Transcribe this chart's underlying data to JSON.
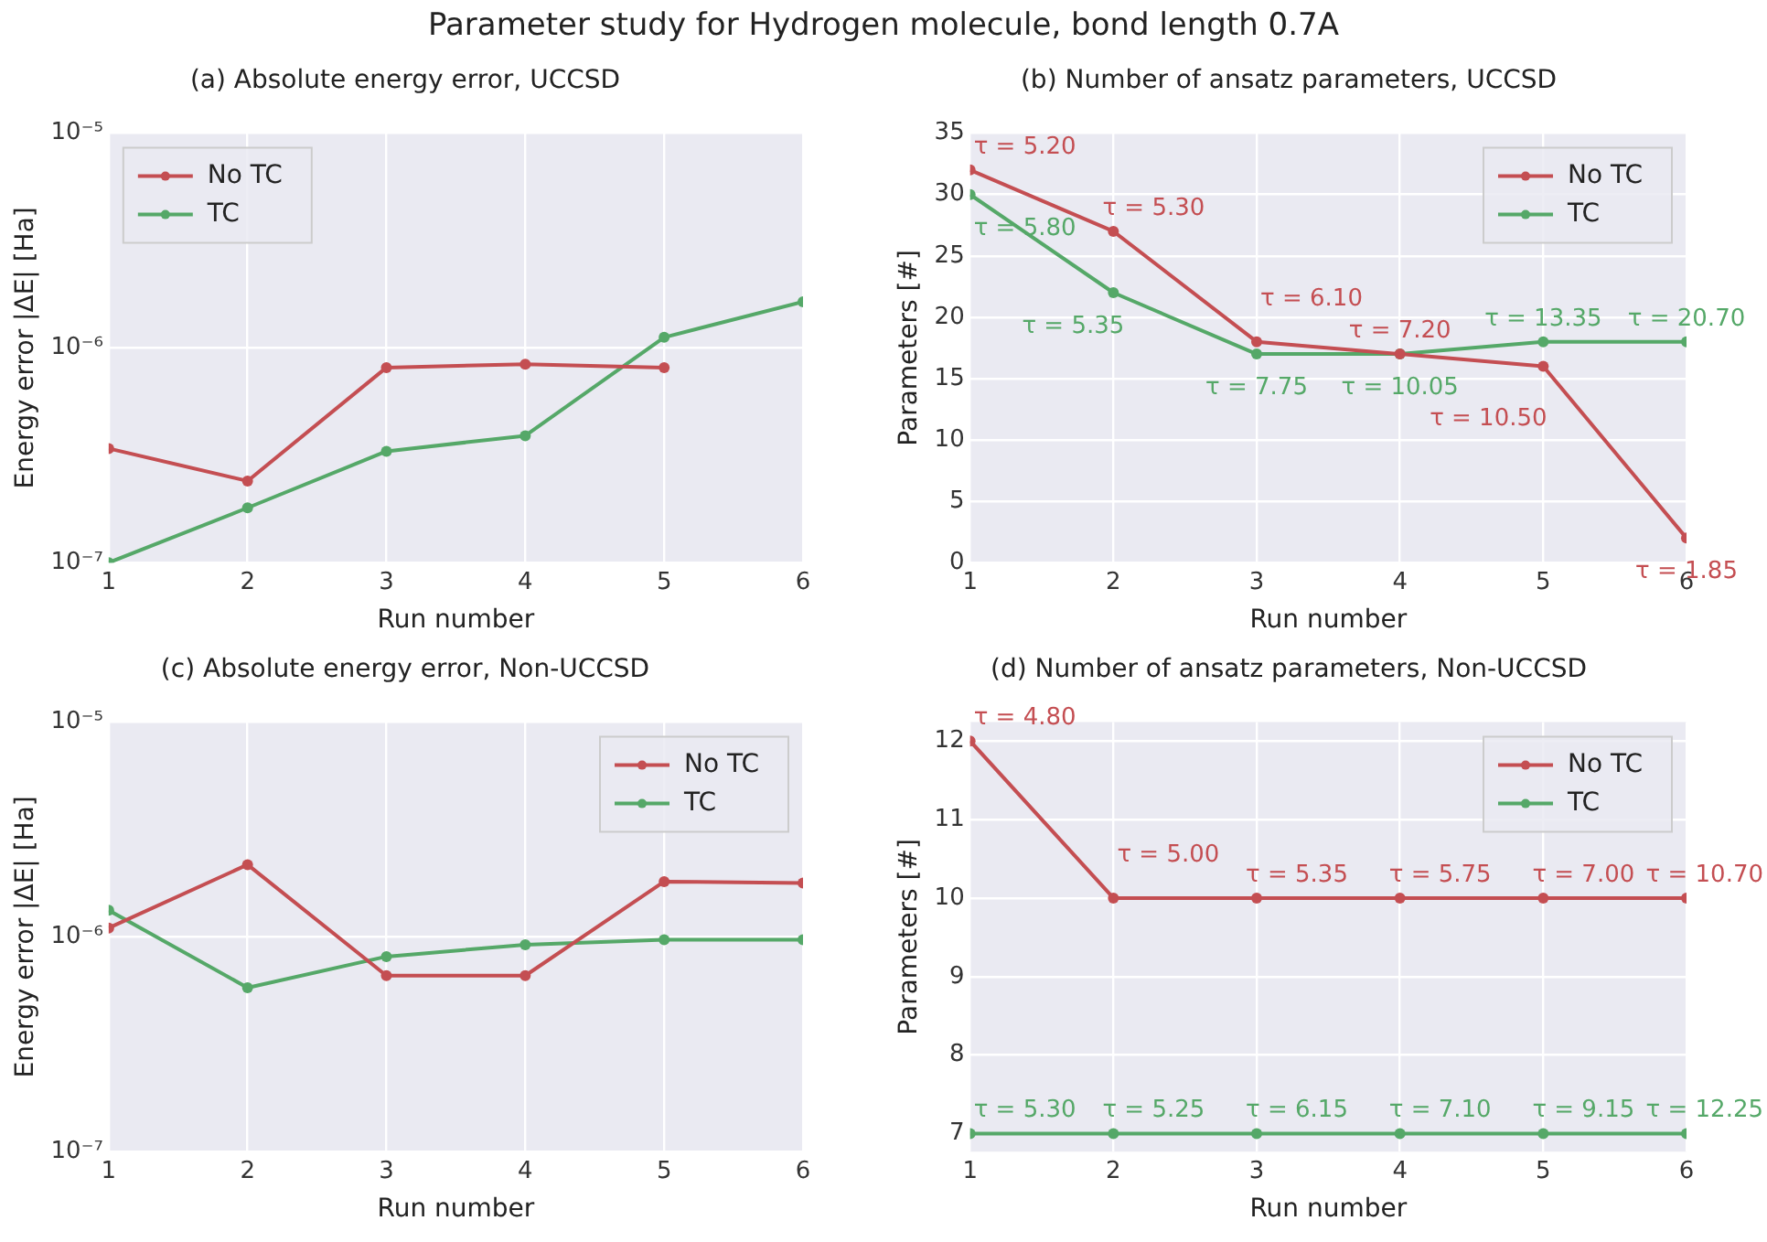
{
  "chart_data": [
    {
      "type": "line",
      "title": "(a) Absolute energy error, UCCSD",
      "xlabel": "Run number",
      "ylabel": "Energy error |ΔE| [Ha]",
      "annotations": [
        "Parameter study for Hydrogen molecule, bond length 0.7A"
      ],
      "x": [
        1,
        2,
        3,
        4,
        5,
        6
      ],
      "xlim": [
        1,
        6
      ],
      "xticks": [
        1,
        2,
        3,
        4,
        5,
        6
      ],
      "log": "y",
      "ylim": [
        1e-07,
        1e-05
      ],
      "yticks": [
        {
          "value": 1e-07,
          "label": "10⁻⁷"
        },
        {
          "value": 1e-06,
          "label": "10⁻⁶"
        },
        {
          "value": 1e-05,
          "label": "10⁻⁵"
        }
      ],
      "grid": true,
      "legend": "top left",
      "marker": "circle",
      "series": [
        {
          "name": "No TC",
          "color": "#c44e52",
          "values": [
            3.4e-07,
            2.4e-07,
            8.1e-07,
            8.4e-07,
            8.1e-07,
            null
          ]
        },
        {
          "name": "TC",
          "color": "#55a868",
          "values": [
            1e-07,
            1.8e-07,
            3.3e-07,
            3.9e-07,
            1.12e-06,
            1.64e-06
          ]
        }
      ]
    },
    {
      "type": "line",
      "title": "(b) Number of ansatz parameters, UCCSD",
      "xlabel": "Run number",
      "ylabel": "Parameters [#]",
      "x": [
        1,
        2,
        3,
        4,
        5,
        6
      ],
      "xlim": [
        1,
        6
      ],
      "xticks": [
        1,
        2,
        3,
        4,
        5,
        6
      ],
      "ylim": [
        0,
        35
      ],
      "yticks": [
        0,
        5,
        10,
        15,
        20,
        25,
        30,
        35
      ],
      "grid": true,
      "legend": "top right",
      "marker": "circle",
      "annotations": [
        {
          "text": "τ = 5.20",
          "x": 1,
          "y": 32
        },
        {
          "text": "τ = 5.30",
          "x": 2,
          "y": 27
        },
        {
          "text": "τ = 6.10",
          "x": 3,
          "y": 18
        },
        {
          "text": "τ = 7.20",
          "x": 4,
          "y": 17
        },
        {
          "text": "τ = 10.50",
          "x": 5,
          "y": 16
        },
        {
          "text": "τ = 1.85",
          "x": 6,
          "y": 2
        },
        {
          "text": "τ = 5.80",
          "x": 1,
          "y": 30
        },
        {
          "text": "τ = 5.35",
          "x": 2,
          "y": 22
        },
        {
          "text": "τ = 7.75",
          "x": 3,
          "y": 17
        },
        {
          "text": "τ = 10.05",
          "x": 4,
          "y": 17
        },
        {
          "text": "τ = 13.35",
          "x": 5,
          "y": 18
        },
        {
          "text": "τ = 20.70",
          "x": 6,
          "y": 18
        }
      ],
      "series": [
        {
          "name": "No TC",
          "color": "#c44e52",
          "values": [
            32,
            27,
            18,
            17,
            16,
            2
          ]
        },
        {
          "name": "TC",
          "color": "#55a868",
          "values": [
            30,
            22,
            17,
            17,
            18,
            18
          ]
        }
      ]
    },
    {
      "type": "line",
      "title": "(c) Absolute energy error, Non-UCCSD",
      "xlabel": "Run number",
      "ylabel": "Energy error |ΔE| [Ha]",
      "x": [
        1,
        2,
        3,
        4,
        5,
        6
      ],
      "xlim": [
        1,
        6
      ],
      "xticks": [
        1,
        2,
        3,
        4,
        5,
        6
      ],
      "log": "y",
      "ylim": [
        1e-07,
        1e-05
      ],
      "yticks": [
        {
          "value": 1e-07,
          "label": "10⁻⁷"
        },
        {
          "value": 1e-06,
          "label": "10⁻⁶"
        },
        {
          "value": 1e-05,
          "label": "10⁻⁵"
        }
      ],
      "grid": true,
      "legend": "top right",
      "marker": "circle",
      "series": [
        {
          "name": "No TC",
          "color": "#c44e52",
          "values": [
            1.1e-06,
            2.17e-06,
            6.6e-07,
            6.6e-07,
            1.81e-06,
            1.78e-06
          ]
        },
        {
          "name": "TC",
          "color": "#55a868",
          "values": [
            1.33e-06,
            5.8e-07,
            8.1e-07,
            9.2e-07,
            9.7e-07,
            9.7e-07
          ]
        }
      ]
    },
    {
      "type": "line",
      "title": "(d) Number of ansatz parameters, Non-UCCSD",
      "xlabel": "Run number",
      "ylabel": "Parameters [#]",
      "x": [
        1,
        2,
        3,
        4,
        5,
        6
      ],
      "xlim": [
        1,
        6
      ],
      "xticks": [
        1,
        2,
        3,
        4,
        5,
        6
      ],
      "ylim": [
        6.77,
        12.24
      ],
      "yticks": [
        7,
        8,
        9,
        10,
        11,
        12
      ],
      "grid": true,
      "legend": "top right",
      "marker": "circle",
      "annotations": [
        {
          "text": "τ = 4.80",
          "x": 1,
          "y": 12
        },
        {
          "text": "τ = 5.00",
          "x": 2,
          "y": 10
        },
        {
          "text": "τ = 5.35",
          "x": 3,
          "y": 10
        },
        {
          "text": "τ = 5.75",
          "x": 4,
          "y": 10
        },
        {
          "text": "τ = 7.00",
          "x": 5,
          "y": 10
        },
        {
          "text": "τ = 10.70",
          "x": 6,
          "y": 10
        },
        {
          "text": "τ = 5.30",
          "x": 1,
          "y": 7
        },
        {
          "text": "τ = 5.25",
          "x": 2,
          "y": 7
        },
        {
          "text": "τ = 6.15",
          "x": 3,
          "y": 7
        },
        {
          "text": "τ = 7.10",
          "x": 4,
          "y": 7
        },
        {
          "text": "τ = 9.15",
          "x": 5,
          "y": 7
        },
        {
          "text": "τ = 12.25",
          "x": 6,
          "y": 7
        }
      ],
      "series": [
        {
          "name": "No TC",
          "color": "#c44e52",
          "values": [
            12,
            10,
            10,
            10,
            10,
            10
          ]
        },
        {
          "name": "TC",
          "color": "#55a868",
          "values": [
            7,
            7,
            7,
            7,
            7,
            7
          ]
        }
      ]
    }
  ]
}
